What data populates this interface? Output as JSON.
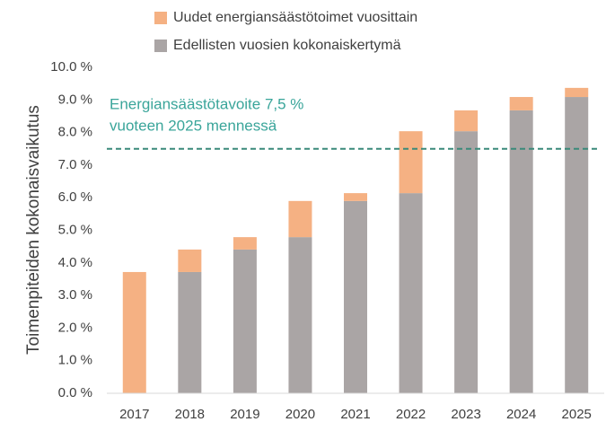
{
  "chart_data": {
    "type": "stacked_bar",
    "y_label": "Toimenpiteiden kokonaisvaikutus",
    "categories": [
      "2017",
      "2018",
      "2019",
      "2020",
      "2021",
      "2022",
      "2023",
      "2024",
      "2025"
    ],
    "series": [
      {
        "name": "Edellisten vuosien kokonaiskertymä",
        "color": "#aaa5a5",
        "values": [
          0,
          3.72,
          4.41,
          4.79,
          5.9,
          6.14,
          8.04,
          8.68,
          9.09
        ]
      },
      {
        "name": "Uudet energiansäästötoimet vuosittain",
        "color": "#f5b183",
        "values": [
          3.72,
          0.69,
          0.38,
          1.11,
          0.24,
          1.9,
          0.64,
          0.41,
          0.28
        ]
      }
    ],
    "ylim": [
      0,
      10
    ],
    "yticks": [
      {
        "value": 0,
        "label": "0.0 %"
      },
      {
        "value": 1,
        "label": "1.0 %"
      },
      {
        "value": 2,
        "label": "2.0 %"
      },
      {
        "value": 3,
        "label": "3.0 %"
      },
      {
        "value": 4,
        "label": "4.0 %"
      },
      {
        "value": 5,
        "label": "5.0 %"
      },
      {
        "value": 6,
        "label": "6.0 %"
      },
      {
        "value": 7,
        "label": "7.0 %"
      },
      {
        "value": 8,
        "label": "8.0 %"
      },
      {
        "value": 9,
        "label": "9.0 %"
      },
      {
        "value": 10,
        "label": "10.0 %"
      }
    ],
    "target_line": {
      "value": 7.5,
      "color": "#3a8a7a",
      "dashed": true
    },
    "annotation": [
      "Energiansäästötavoite 7,5 %",
      "vuoteen 2025 mennessä"
    ],
    "annotation_color": "#3aa59a",
    "grid": false,
    "legend": "top"
  }
}
